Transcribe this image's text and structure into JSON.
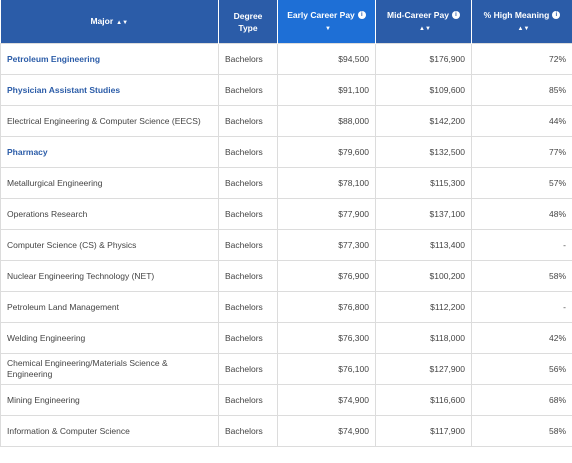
{
  "table": {
    "header": {
      "major": "Major",
      "degree": "Degree Type",
      "early": "Early Career Pay",
      "mid": "Mid-Career Pay",
      "meaning": "% High Meaning"
    },
    "rows": [
      {
        "major": "Petroleum Engineering",
        "link": true,
        "degree": "Bachelors",
        "early": "$94,500",
        "mid": "$176,900",
        "meaning": "72%"
      },
      {
        "major": "Physician Assistant Studies",
        "link": true,
        "degree": "Bachelors",
        "early": "$91,100",
        "mid": "$109,600",
        "meaning": "85%"
      },
      {
        "major": "Electrical Engineering & Computer Science (EECS)",
        "link": false,
        "degree": "Bachelors",
        "early": "$88,000",
        "mid": "$142,200",
        "meaning": "44%"
      },
      {
        "major": "Pharmacy",
        "link": true,
        "degree": "Bachelors",
        "early": "$79,600",
        "mid": "$132,500",
        "meaning": "77%"
      },
      {
        "major": "Metallurgical Engineering",
        "link": false,
        "degree": "Bachelors",
        "early": "$78,100",
        "mid": "$115,300",
        "meaning": "57%"
      },
      {
        "major": "Operations Research",
        "link": false,
        "degree": "Bachelors",
        "early": "$77,900",
        "mid": "$137,100",
        "meaning": "48%"
      },
      {
        "major": "Computer Science (CS) & Physics",
        "link": false,
        "degree": "Bachelors",
        "early": "$77,300",
        "mid": "$113,400",
        "meaning": "-"
      },
      {
        "major": "Nuclear Engineering Technology (NET)",
        "link": false,
        "degree": "Bachelors",
        "early": "$76,900",
        "mid": "$100,200",
        "meaning": "58%"
      },
      {
        "major": "Petroleum Land Management",
        "link": false,
        "degree": "Bachelors",
        "early": "$76,800",
        "mid": "$112,200",
        "meaning": "-"
      },
      {
        "major": "Welding Engineering",
        "link": false,
        "degree": "Bachelors",
        "early": "$76,300",
        "mid": "$118,000",
        "meaning": "42%"
      },
      {
        "major": "Chemical Engineering/Materials Science & Engineering",
        "link": false,
        "degree": "Bachelors",
        "early": "$76,100",
        "mid": "$127,900",
        "meaning": "56%"
      },
      {
        "major": "Mining Engineering",
        "link": false,
        "degree": "Bachelors",
        "early": "$74,900",
        "mid": "$116,600",
        "meaning": "68%"
      },
      {
        "major": "Information & Computer Science",
        "link": false,
        "degree": "Bachelors",
        "early": "$74,900",
        "mid": "$117,900",
        "meaning": "58%"
      }
    ]
  }
}
